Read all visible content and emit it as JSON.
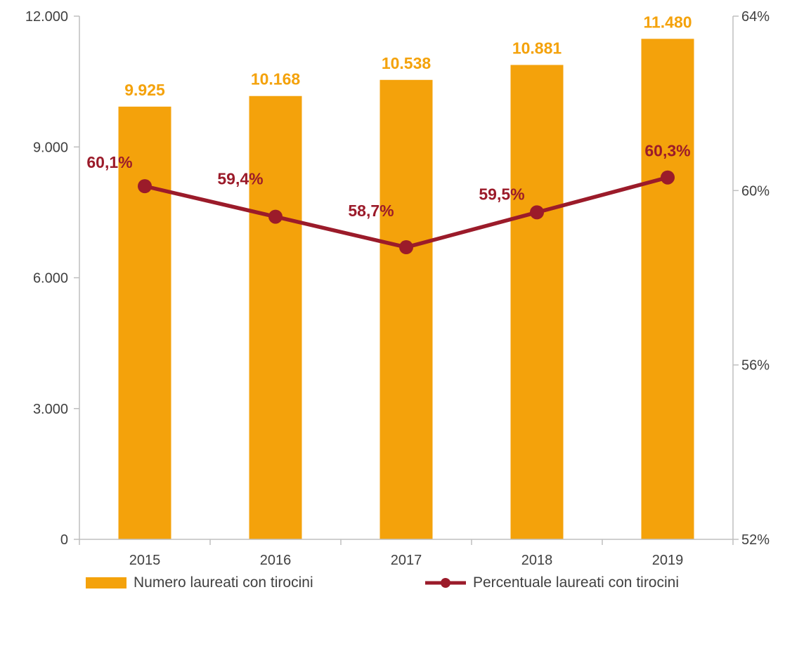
{
  "chart_data": {
    "type": "bar",
    "categories": [
      "2015",
      "2016",
      "2017",
      "2018",
      "2019"
    ],
    "series": [
      {
        "name": "Numero laureati con tirocini",
        "type": "bar",
        "axis": "left",
        "values": [
          9925,
          10168,
          10538,
          10881,
          11480
        ],
        "labels": [
          "9.925",
          "10.168",
          "10.538",
          "10.881",
          "11.480"
        ],
        "color": "#F4A20B"
      },
      {
        "name": "Percentuale laureati con tirocini",
        "type": "line",
        "axis": "right",
        "values": [
          60.1,
          59.4,
          58.7,
          59.5,
          60.3
        ],
        "labels": [
          "60,1%",
          "59,4%",
          "58,7%",
          "59,5%",
          "60,3%"
        ],
        "color": "#9B1B2A"
      }
    ],
    "y_left": {
      "ylim": [
        0,
        12000
      ],
      "ticks": [
        0,
        3000,
        6000,
        9000,
        12000
      ],
      "tick_labels": [
        "0",
        "3.000",
        "6.000",
        "9.000",
        "12.000"
      ]
    },
    "y_right": {
      "ylim": [
        52,
        64
      ],
      "ticks": [
        52,
        56,
        60,
        64
      ],
      "tick_labels": [
        "52%",
        "56%",
        "60%",
        "64%"
      ]
    },
    "title": "",
    "xlabel": "",
    "grid": false,
    "legend_position": "bottom"
  }
}
